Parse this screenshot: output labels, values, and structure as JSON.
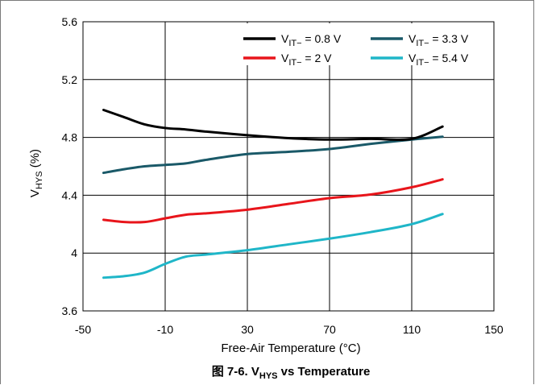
{
  "chart_data": {
    "type": "line",
    "caption": {
      "prefix": "图 7-6. V",
      "sub": "HYS",
      "suffix": " vs Temperature"
    },
    "xlabel": "Free-Air Temperature (°C)",
    "ylabel": {
      "main": "V",
      "sub": "HYS",
      "suffix": " (%)"
    },
    "xlim": [
      -50,
      150
    ],
    "ylim": [
      3.6,
      5.6
    ],
    "xticks": [
      -50,
      -10,
      30,
      70,
      110,
      150
    ],
    "xtick_labels": [
      "-50",
      "-10",
      "30",
      "70",
      "110",
      "150"
    ],
    "yticks": [
      3.6,
      4,
      4.4,
      4.8,
      5.2,
      5.6
    ],
    "ytick_labels": [
      "3.6",
      "4",
      "4.4",
      "4.8",
      "5.2",
      "5.6"
    ],
    "grid": true,
    "legend_position": "top-right",
    "series": [
      {
        "name": "V_IT− = 0.8 V",
        "label_main": "V",
        "label_sub": "IT−",
        "label_value": " = 0.8 V",
        "color": "#000000",
        "x": [
          -40,
          -30,
          -20,
          -10,
          0,
          10,
          30,
          50,
          70,
          90,
          110,
          125
        ],
        "y": [
          4.99,
          4.94,
          4.89,
          4.865,
          4.855,
          4.84,
          4.815,
          4.795,
          4.785,
          4.79,
          4.79,
          4.875
        ]
      },
      {
        "name": "V_IT− = 2 V",
        "label_main": "V",
        "label_sub": "IT−",
        "label_value": " = 2 V",
        "color": "#e8151b",
        "x": [
          -40,
          -30,
          -20,
          -10,
          0,
          10,
          30,
          50,
          70,
          90,
          110,
          125
        ],
        "y": [
          4.23,
          4.215,
          4.215,
          4.24,
          4.265,
          4.275,
          4.3,
          4.34,
          4.38,
          4.405,
          4.455,
          4.51
        ]
      },
      {
        "name": "V_IT− = 3.3 V",
        "label_main": "V",
        "label_sub": "IT−",
        "label_value": " = 3.3 V",
        "color": "#1a5968",
        "x": [
          -40,
          -30,
          -20,
          -10,
          0,
          10,
          30,
          50,
          70,
          90,
          110,
          125
        ],
        "y": [
          4.555,
          4.58,
          4.6,
          4.61,
          4.62,
          4.645,
          4.685,
          4.7,
          4.72,
          4.755,
          4.785,
          4.805
        ]
      },
      {
        "name": "V_IT− = 5.4 V",
        "label_main": "V",
        "label_sub": "IT−",
        "label_value": " = 5.4 V",
        "color": "#1fb6c8",
        "x": [
          -40,
          -30,
          -20,
          -10,
          0,
          10,
          30,
          50,
          70,
          90,
          110,
          125
        ],
        "y": [
          3.83,
          3.84,
          3.865,
          3.925,
          3.975,
          3.99,
          4.02,
          4.06,
          4.1,
          4.145,
          4.2,
          4.27
        ]
      }
    ]
  }
}
